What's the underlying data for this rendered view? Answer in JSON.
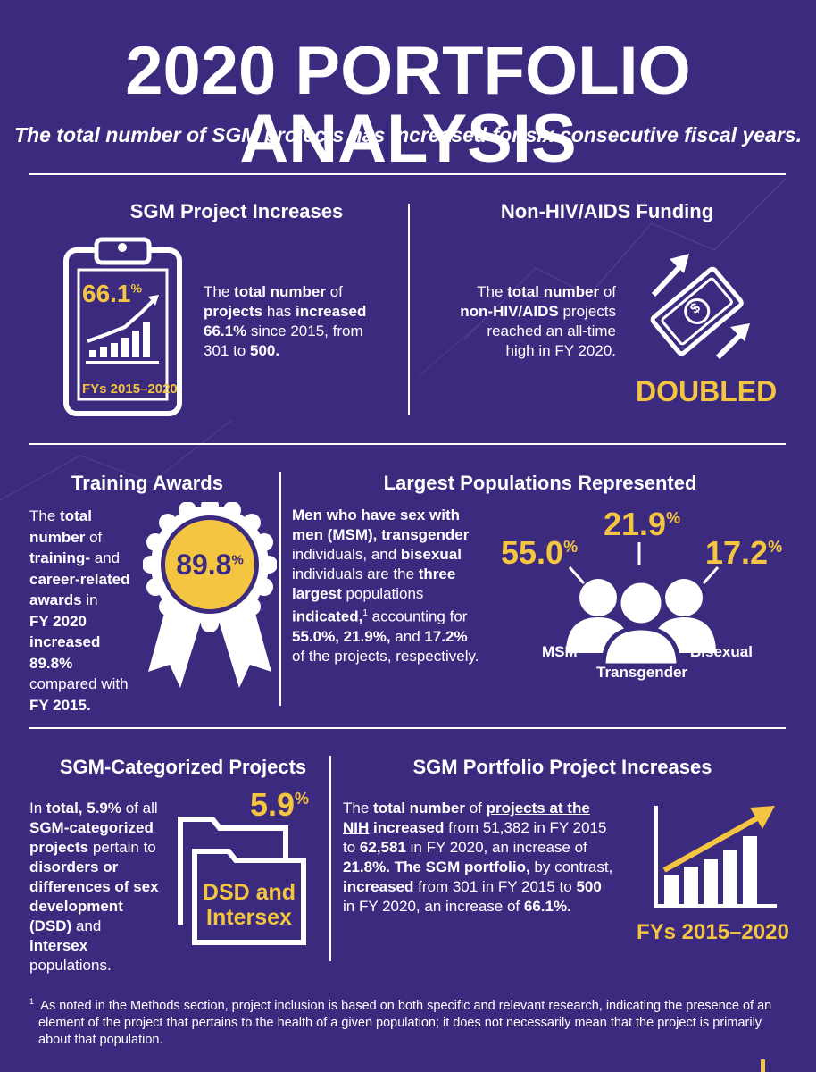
{
  "title": "2020 PORTFOLIO ANALYSIS",
  "subtitle": "The total number of SGM projects has increased for six consecutive fiscal years.",
  "sgm_increases": {
    "title": "SGM Project Increases",
    "clipboard_pct": "66.1",
    "pct_sign": "%",
    "clipboard_caption": "FYs 2015–2020",
    "text_1": "The ",
    "text_2": "total number",
    "text_3": " of ",
    "text_4": "projects",
    "text_5": " has ",
    "text_6": "increased",
    "text_7": "66.1%",
    "text_8": " since 2015, from 301 to ",
    "text_9": "500."
  },
  "non_hiv": {
    "title": "Non-HIV/AIDS Funding",
    "text_1": "The ",
    "text_2": "total number",
    "text_3": " of",
    "text_4": "non-HIV/AIDS",
    "text_5": " projects",
    "text_6": "reached an all-time",
    "text_7": "high in FY 2020.",
    "badge": "DOUBLED",
    "money_symbol": "$"
  },
  "training": {
    "title": "Training Awards",
    "lines": [
      "The ",
      "total",
      "number",
      " of",
      "training-",
      " and",
      "career-related",
      "awards",
      " in",
      "FY 2020",
      "increased",
      "89.8%",
      "compared with",
      "FY 2015."
    ],
    "medal_pct": "89.8",
    "pct_sign": "%"
  },
  "populations": {
    "title": "Largest Populations Represented",
    "t1": "Men who have sex with men (MSM), transgender",
    "t2": " individuals, and ",
    "t3": "bisexual",
    "t4": " individuals are the ",
    "t5": "three largest",
    "t6": " populations ",
    "t7": "indicated,",
    "t7_sup": "1",
    "t8": " accounting for ",
    "t9": "55.0%, 21.9%,",
    "t10": " and ",
    "t11": "17.2%",
    "t12": " of the projects, respectively.",
    "msm_pct": "55.0",
    "trans_pct": "21.9",
    "bi_pct": "17.2",
    "pct_sign": "%",
    "msm_label": "MSM",
    "trans_label": "Transgender",
    "bi_label": "Bisexual"
  },
  "sgm_categorized": {
    "title": "SGM-Categorized Projects",
    "t1": "In ",
    "t2": "total, 5.9%",
    "t3": " of all ",
    "t4": "SGM-categorized projects",
    "t5": " pertain to ",
    "t6": "disorders or differences of sex development",
    "t7": " (DSD)",
    "t8": " and ",
    "t9": "intersex",
    "t10": " populations.",
    "pct": "5.9",
    "pct_sign": "%",
    "folder_line1": "DSD and",
    "folder_line2": "Intersex"
  },
  "portfolio": {
    "title": "SGM Portfolio Project Increases",
    "t1": "The ",
    "t2": "total number",
    "t3": " of ",
    "t4": "projects at the NIH",
    "t5": " increased",
    "t6": " from 51,382 in FY 2015 to ",
    "t7": "62,581",
    "t8": " in FY 2020, an increase of ",
    "t9": "21.8%. The SGM portfolio,",
    "t10": " by contrast, ",
    "t11": "increased",
    "t12": " from 301 in FY 2015 to ",
    "t13": "500",
    "t14": " in FY 2020, an increase of ",
    "t15": "66.1%.",
    "caption": "FYs 2015–2020"
  },
  "footnote": {
    "marker": "1",
    "text": "As noted in the Methods section, project inclusion is based on both specific and relevant research, indicating the presence of an element of the project that pertains to the health of a given population; it does not necessarily mean that the project is primarily about that population."
  },
  "colors": {
    "background": "#3b2a7e",
    "accent_gold": "#f4c540",
    "text": "#ffffff"
  }
}
